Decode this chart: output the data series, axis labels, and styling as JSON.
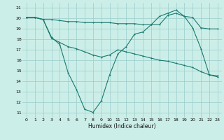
{
  "xlabel": "Humidex (Indice chaleur)",
  "xlim": [
    -0.5,
    23.5
  ],
  "ylim": [
    10.5,
    21.5
  ],
  "yticks": [
    11,
    12,
    13,
    14,
    15,
    16,
    17,
    18,
    19,
    20,
    21
  ],
  "xticks": [
    0,
    1,
    2,
    3,
    4,
    5,
    6,
    7,
    8,
    9,
    10,
    11,
    12,
    13,
    14,
    15,
    16,
    17,
    18,
    19,
    20,
    21,
    22,
    23
  ],
  "background_color": "#cceee8",
  "grid_color": "#99cccc",
  "line_color": "#1a7a6e",
  "line1_x": [
    0,
    1,
    2,
    3,
    4,
    5,
    6,
    7,
    8,
    9,
    10,
    11,
    12,
    13,
    14,
    15,
    16,
    17,
    18,
    19,
    20,
    21,
    22,
    23
  ],
  "line1_y": [
    20.1,
    20.1,
    19.9,
    19.9,
    19.8,
    19.7,
    19.7,
    19.6,
    19.6,
    19.6,
    19.6,
    19.5,
    19.5,
    19.5,
    19.4,
    19.4,
    19.4,
    20.3,
    20.5,
    20.2,
    20.1,
    19.1,
    19.0,
    19.0
  ],
  "line2_x": [
    0,
    1,
    2,
    3,
    4,
    5,
    6,
    7,
    8,
    9,
    10,
    11,
    12,
    13,
    14,
    15,
    16,
    17,
    18,
    19,
    20,
    21,
    22,
    23
  ],
  "line2_y": [
    20.1,
    20.1,
    19.9,
    18.1,
    17.7,
    17.3,
    17.1,
    16.8,
    16.5,
    16.3,
    16.5,
    17.0,
    16.8,
    16.6,
    16.4,
    16.2,
    16.0,
    15.9,
    15.7,
    15.5,
    15.3,
    14.9,
    14.6,
    14.5
  ],
  "line3_x": [
    0,
    1,
    2,
    3,
    4,
    5,
    6,
    7,
    8,
    9,
    10,
    11,
    12,
    13,
    14,
    15,
    16,
    17,
    18,
    19,
    20,
    21,
    22,
    23
  ],
  "line3_y": [
    20.1,
    20.1,
    19.9,
    18.2,
    17.5,
    14.8,
    13.2,
    11.3,
    11.0,
    12.1,
    14.6,
    16.6,
    17.3,
    18.5,
    18.7,
    19.4,
    20.2,
    20.5,
    20.8,
    20.2,
    19.1,
    17.1,
    14.6,
    14.4
  ]
}
